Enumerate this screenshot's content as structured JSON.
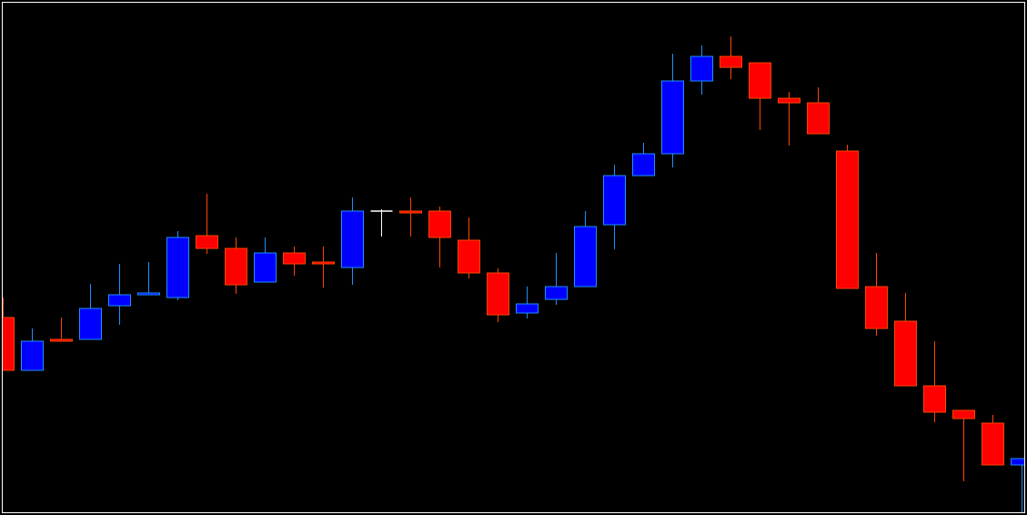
{
  "chart_data": {
    "type": "candlestick",
    "title": "",
    "xlabel": "",
    "ylabel": "",
    "grid": false,
    "axes_shown": false,
    "colors": {
      "background": "#000000",
      "frame": "#ffffff",
      "bull_fill": "#0000ff",
      "bull_line": "#1e90ff",
      "bear_fill": "#ff0000",
      "bear_line": "#ff4500",
      "doji": "#ffffff"
    },
    "ylim": [
      0,
      566
    ],
    "candles": [
      {
        "o": 217,
        "h": 239,
        "l": 159,
        "c": 159
      },
      {
        "o": 159,
        "h": 205,
        "l": 159,
        "c": 191
      },
      {
        "o": 193,
        "h": 217,
        "l": 191,
        "c": 191
      },
      {
        "o": 193,
        "h": 254,
        "l": 193,
        "c": 227
      },
      {
        "o": 230,
        "h": 276,
        "l": 209,
        "c": 242
      },
      {
        "o": 242,
        "h": 278,
        "l": 242,
        "c": 244
      },
      {
        "o": 239,
        "h": 312,
        "l": 236,
        "c": 305
      },
      {
        "o": 307,
        "h": 353,
        "l": 287,
        "c": 293
      },
      {
        "o": 293,
        "h": 305,
        "l": 243,
        "c": 253
      },
      {
        "o": 256,
        "h": 305,
        "l": 256,
        "c": 288
      },
      {
        "o": 288,
        "h": 295,
        "l": 263,
        "c": 276
      },
      {
        "o": 278,
        "h": 295,
        "l": 250,
        "c": 276
      },
      {
        "o": 272,
        "h": 349,
        "l": 253,
        "c": 334
      },
      {
        "o": 334,
        "h": 336,
        "l": 306,
        "c": 334
      },
      {
        "o": 334,
        "h": 349,
        "l": 306,
        "c": 332
      },
      {
        "o": 334,
        "h": 339,
        "l": 272,
        "c": 305
      },
      {
        "o": 302,
        "h": 327,
        "l": 260,
        "c": 266
      },
      {
        "o": 266,
        "h": 271,
        "l": 212,
        "c": 220
      },
      {
        "o": 222,
        "h": 251,
        "l": 216,
        "c": 232
      },
      {
        "o": 237,
        "h": 288,
        "l": 231,
        "c": 251
      },
      {
        "o": 251,
        "h": 334,
        "l": 251,
        "c": 317
      },
      {
        "o": 319,
        "h": 385,
        "l": 292,
        "c": 373
      },
      {
        "o": 373,
        "h": 409,
        "l": 373,
        "c": 397
      },
      {
        "o": 397,
        "h": 507,
        "l": 382,
        "c": 477
      },
      {
        "o": 477,
        "h": 516,
        "l": 462,
        "c": 504
      },
      {
        "o": 504,
        "h": 526,
        "l": 479,
        "c": 492
      },
      {
        "o": 497,
        "h": 497,
        "l": 423,
        "c": 458
      },
      {
        "o": 458,
        "h": 465,
        "l": 406,
        "c": 453
      },
      {
        "o": 453,
        "h": 470,
        "l": 419,
        "c": 419
      },
      {
        "o": 400,
        "h": 407,
        "l": 249,
        "c": 249
      },
      {
        "o": 251,
        "h": 288,
        "l": 197,
        "c": 205
      },
      {
        "o": 213,
        "h": 244,
        "l": 142,
        "c": 142
      },
      {
        "o": 142,
        "h": 191,
        "l": 102,
        "c": 113
      },
      {
        "o": 115,
        "h": 115,
        "l": 37,
        "c": 106
      },
      {
        "o": 101,
        "h": 110,
        "l": 55,
        "c": 55
      },
      {
        "o": 55,
        "h": 62,
        "l": 3,
        "c": 62
      }
    ]
  }
}
